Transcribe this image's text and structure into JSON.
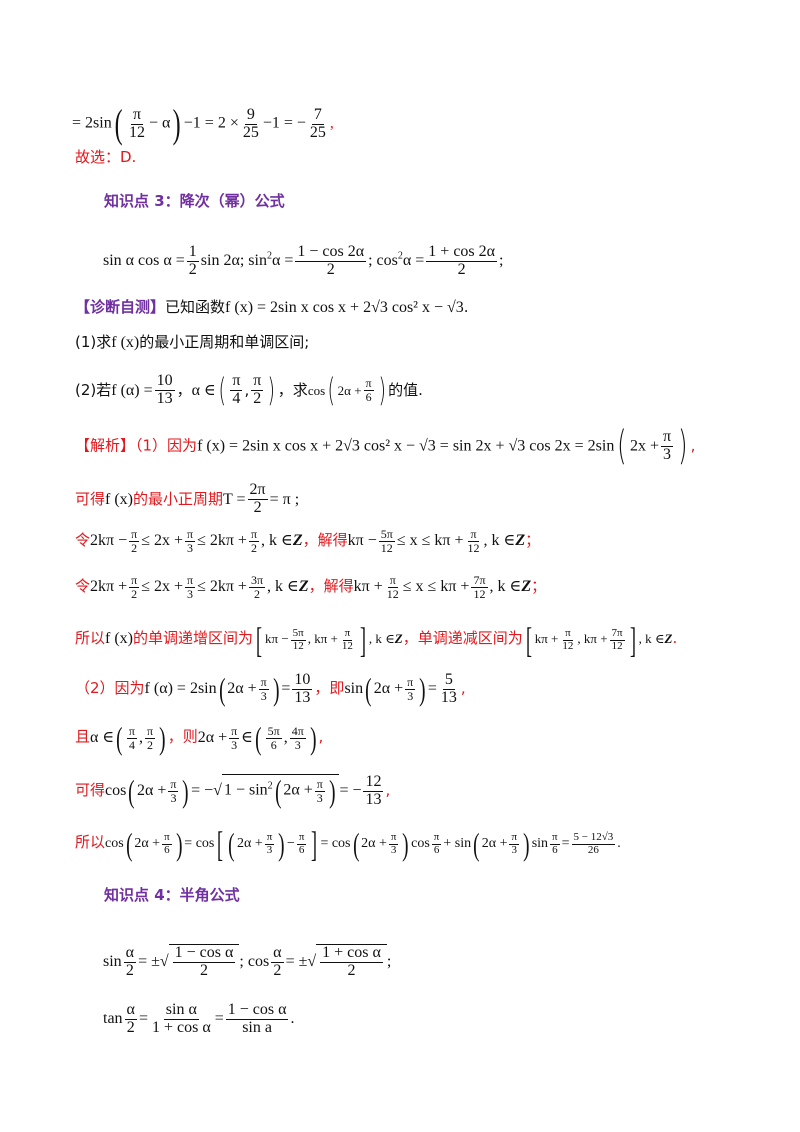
{
  "top": {
    "prefix": "= 2sin",
    "frac1_num": "π",
    "frac1_den": "12",
    "minus_alpha": "− α",
    "after_paren": "−1 = 2 ×",
    "frac2_num": "9",
    "frac2_den": "25",
    "mid": "−1 = −",
    "frac3_num": "7",
    "frac3_den": "25",
    "tail": ","
  },
  "answer_line": "故选：D.",
  "section3_title": "知识点 3：降次（幂）公式",
  "section3_formula": {
    "part1": "sin α cos α =",
    "f1_num": "1",
    "f1_den": "2",
    "part2": "sin 2α; sin",
    "sup2": "2",
    "part3": "α =",
    "f2_num": "1 − cos 2α",
    "f2_den": "2",
    "part4": "; cos",
    "part5": "α =",
    "f3_num": "1 + cos 2α",
    "f3_den": "2",
    "part6": ";"
  },
  "diagnose": {
    "tag": "【诊断自测】",
    "text": "已知函数",
    "func": "f (x) = 2sin x cos x + 2√3 cos² x − √3",
    "end": "."
  },
  "q1": {
    "text_a": "(1)求",
    "func": "f (x)",
    "text_b": "的最小正周期和单调区间;"
  },
  "q2": {
    "text_a": "(2)若",
    "cond": "f (α) =",
    "n": "10",
    "d": "13",
    "sep": "，",
    "alpha_in": "α ∈",
    "i1n": "π",
    "i1d": "4",
    "i2n": "π",
    "i2d": "2",
    "text_b": "，求",
    "expr": "cos",
    "expr_in": "2α +",
    "en": "π",
    "ed": "6",
    "text_c": "的值."
  },
  "sol": {
    "tag": "【解析】",
    "p1": "（1）因为",
    "p1_math": "f (x) = 2sin x cos x + 2√3 cos² x − √3 = sin 2x + √3 cos 2x = 2sin",
    "p1_in": "2x +",
    "p1_n": "π",
    "p1_d": "3",
    "p1_end": ",",
    "l2_text": "可得",
    "l2_func": "f (x)",
    "l2_text2": "的最小正周期",
    "l2_T": "T =",
    "l2_n": "2π",
    "l2_d": "2",
    "l2_end": "= π ;",
    "l3_text": "令",
    "l3_a": "2kπ −",
    "l3_b": "≤ 2x +",
    "l3_c": "≤ 2kπ +",
    "l3_d": ", k ∈",
    "l3_text2": "，解得",
    "l3_e": "kπ −",
    "l3_f": "≤ x ≤ kπ +",
    "l3_g": ", k ∈",
    "l3_5pi": "5π",
    "l3_12": "12",
    "l4_text": "令",
    "l4_a": "2kπ +",
    "l4_b": "≤ 2x +",
    "l4_c": "≤ 2kπ +",
    "l4_3pi": "3π",
    "l4_d": ", k ∈",
    "l4_text2": "，解得",
    "l4_e": "kπ +",
    "l4_f": "≤ x ≤ kπ +",
    "l4_7pi": "7π",
    "l4_g": ", k ∈",
    "Z": "Z",
    "semi": "；",
    "pi": "π",
    "two": "2",
    "three": "3",
    "twelve": "12",
    "l5_text": "所以",
    "l5_func": "f (x)",
    "l5_text2": "的单调递增区间为",
    "l5_i1": "kπ −",
    "l5_i1b": ", kπ +",
    "l5_k": ", k ∈",
    "l5_text3": "，单调递减区间为",
    "l5_i2": "kπ +",
    "l5_i2b": ", kπ +",
    "l5_end": ".",
    "l6_text": "（2）因为",
    "l6_a": "f (α) = 2sin",
    "l6_in": "2α +",
    "l6_eq": "=",
    "l6_10": "10",
    "l6_13": "13",
    "l6_text2": "，即",
    "l6_b": "sin",
    "l6_5": "5",
    "l6_end": ",",
    "l7_text": "且",
    "l7_a": "α ∈",
    "l7_text2": "，则",
    "l7_b": "2α +",
    "l7_c": "∈",
    "l7_5pi": "5π",
    "l7_6": "6",
    "l7_4pi": "4π",
    "l7_end": ",",
    "l8_text": "可得",
    "l8_a": "cos",
    "l8_in": "2α +",
    "l8_eq": "= −",
    "l8_sq": "1 − sin",
    "l8_eq2": "= −",
    "l8_12": "12",
    "l8_end": ",",
    "l9_text": "所以",
    "l9_a": "cos",
    "l9_in": "2α +",
    "l9_6": "6",
    "l9_eq": "= cos",
    "l9_mid": "−",
    "l9_eq2": "= cos",
    "l9_cos6": "cos",
    "l9_plus": "+ sin",
    "l9_sin6": "sin",
    "l9_eq3": "=",
    "l9_rn": "5 − 12√3",
    "l9_rd": "26",
    "l9_end": "."
  },
  "section4_title": "知识点 4：半角公式",
  "section4": {
    "sin": "sin",
    "a": "α",
    "two": "2",
    "pm": "= ±",
    "s1n": "1 − cos α",
    "s1d": "2",
    "semi": "; cos",
    "s2n": "1 + cos α",
    "end1": ";",
    "tan": "tan",
    "eq": "=",
    "t1n": "sin α",
    "t1d": "1 + cos α",
    "t2n": "1 − cos α",
    "t2d": "sin a",
    "end2": "."
  }
}
